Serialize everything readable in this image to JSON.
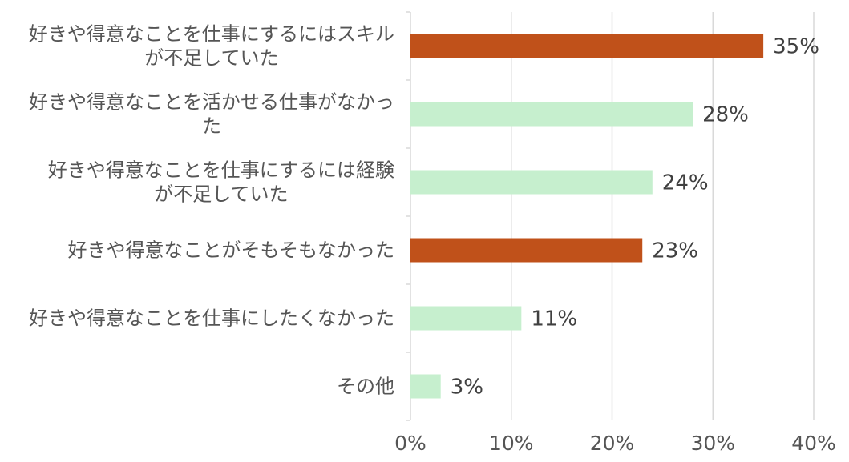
{
  "chart_data": {
    "type": "bar",
    "orientation": "horizontal",
    "categories": [
      [
        "好きや得意なことを仕事にするにはスキル",
        "が不足していた"
      ],
      [
        "好きや得意なことを活かせる仕事がなかっ",
        "た"
      ],
      [
        "好きや得意なことを仕事にするには経験",
        "が不足していた"
      ],
      [
        "好きや得意なことがそもそもなかった"
      ],
      [
        "好きや得意なことを仕事にしたくなかった"
      ],
      [
        "その他"
      ]
    ],
    "values": [
      35,
      28,
      24,
      23,
      11,
      3
    ],
    "data_labels": [
      "35%",
      "28%",
      "24%",
      "23%",
      "11%",
      "3%"
    ],
    "bar_colors": [
      "#c0511a",
      "#c6efce",
      "#c6efce",
      "#c0511a",
      "#c6efce",
      "#c6efce"
    ],
    "xlim": [
      0,
      40
    ],
    "x_ticks": [
      0,
      10,
      20,
      30,
      40
    ],
    "x_tick_labels": [
      "0%",
      "10%",
      "20%",
      "30%",
      "40%"
    ],
    "grid": true,
    "legend": "none"
  }
}
